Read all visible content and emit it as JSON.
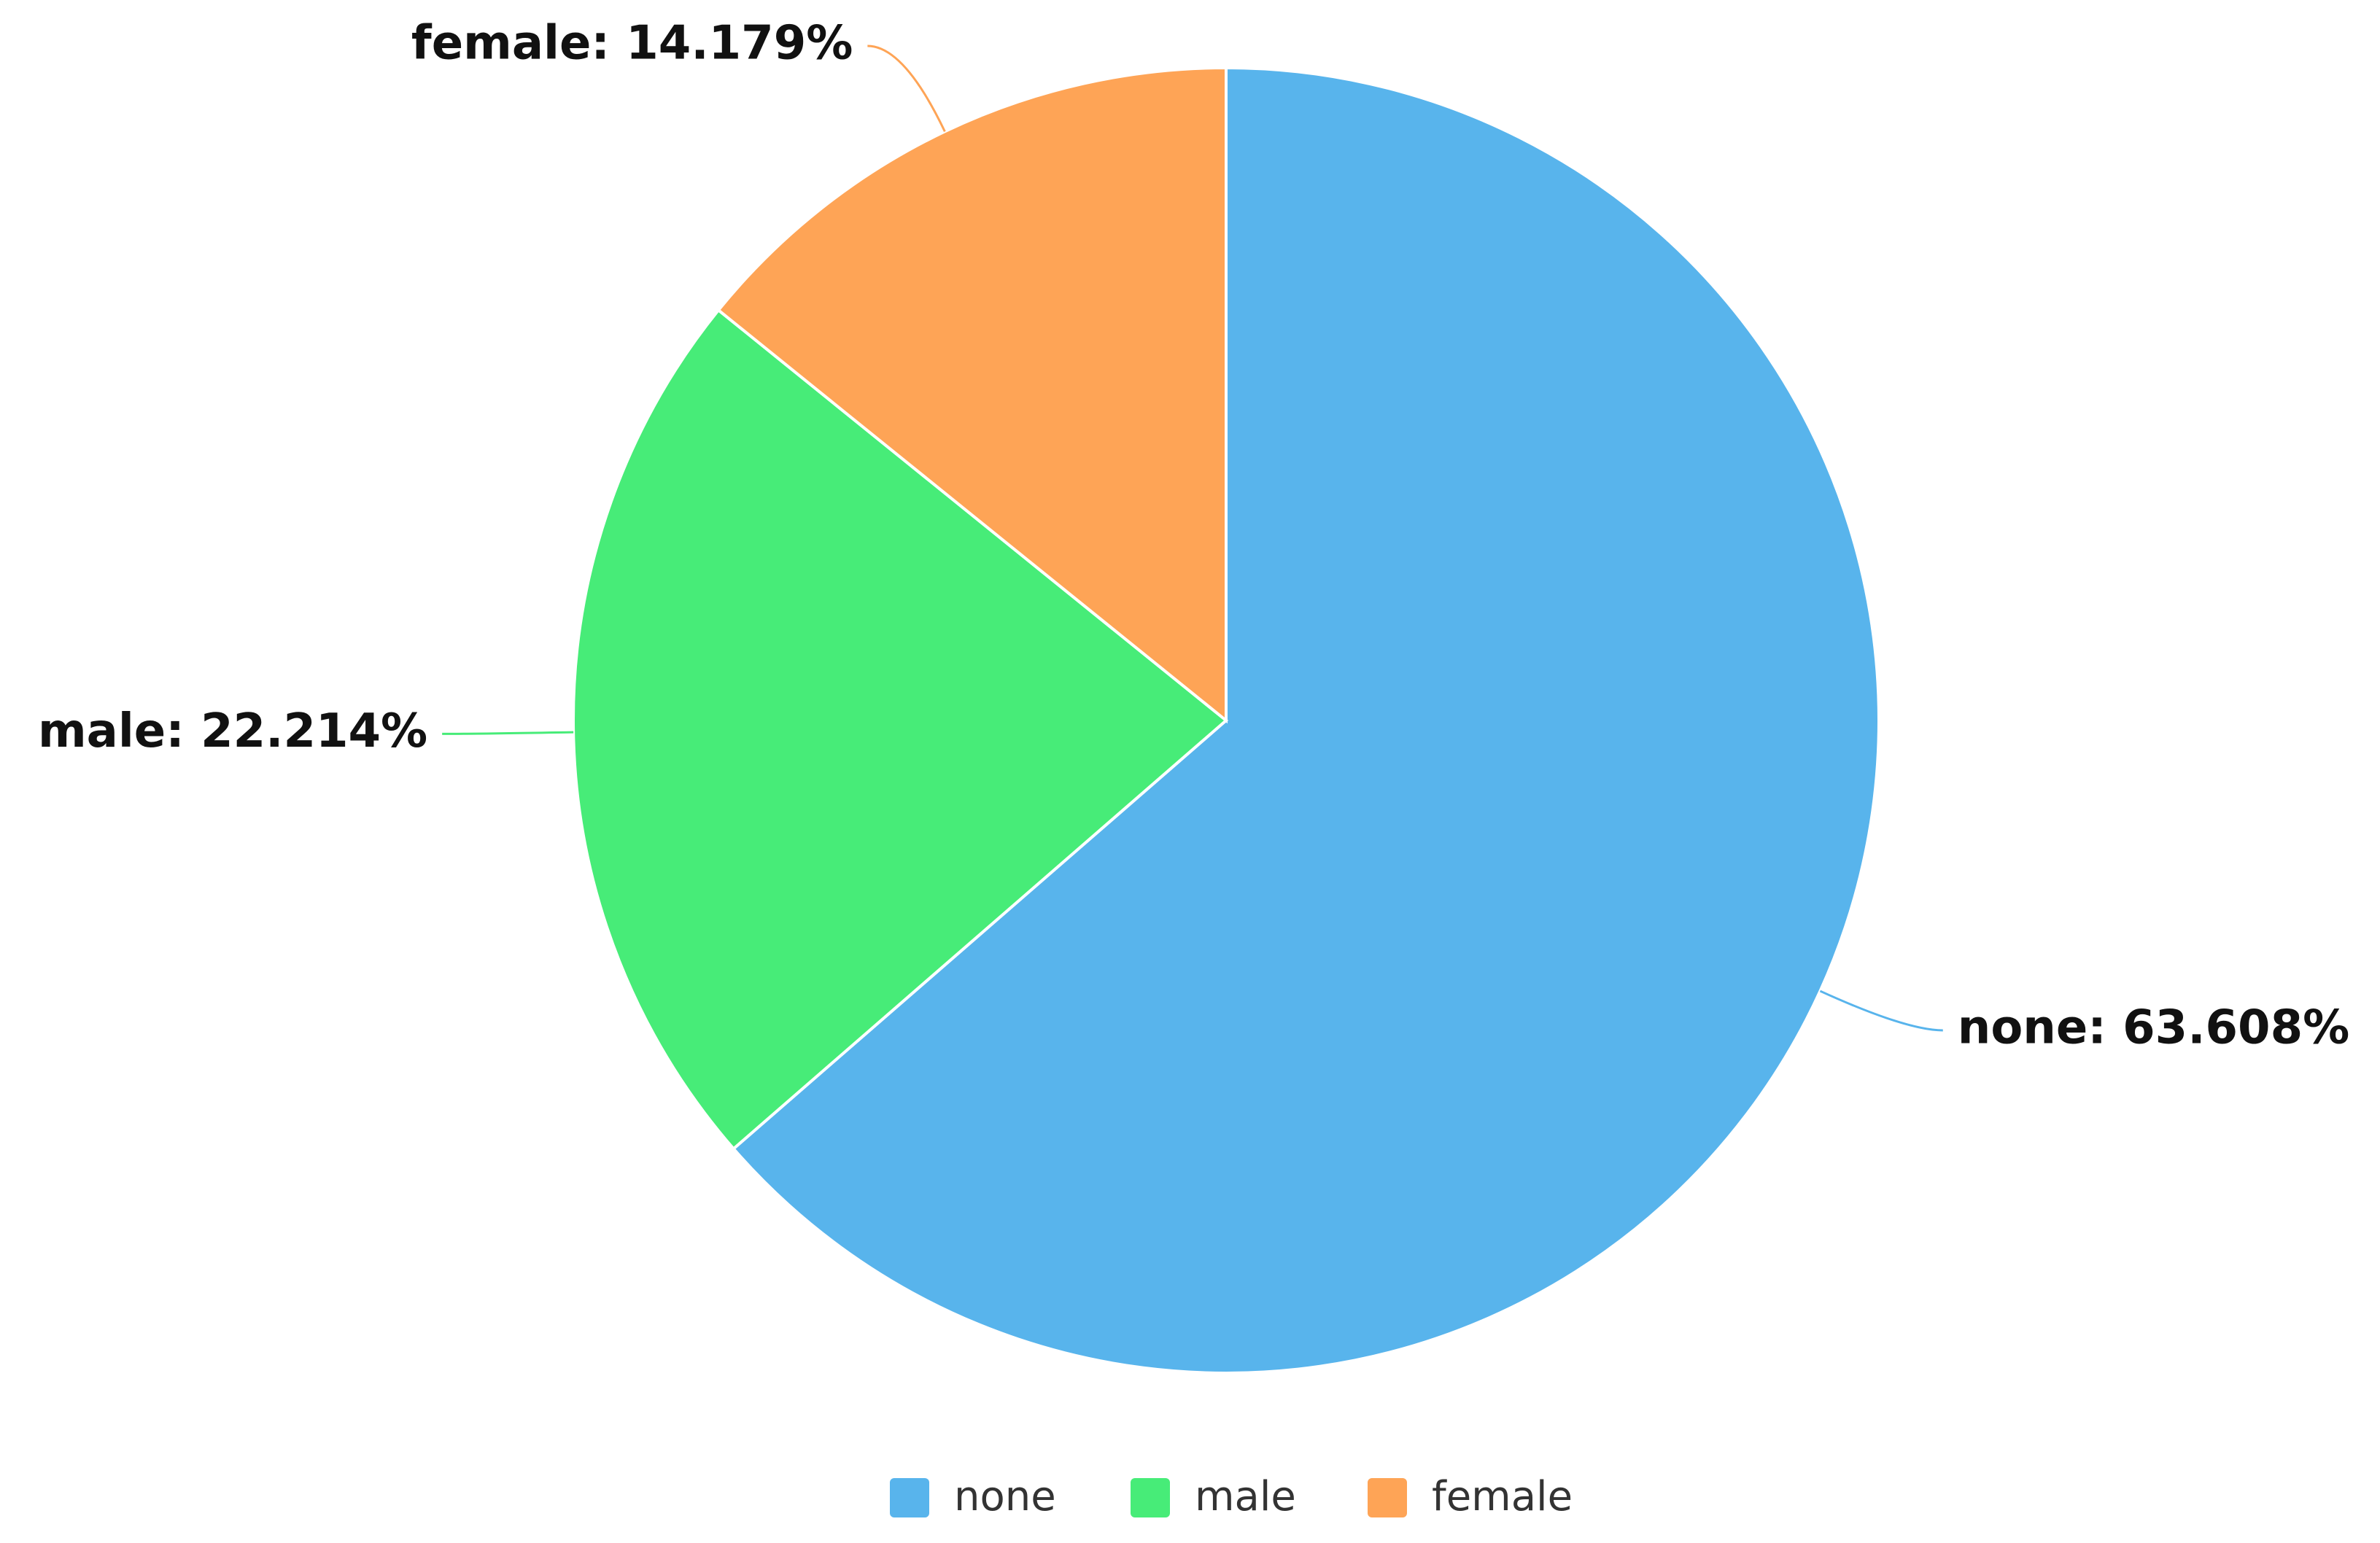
{
  "chart_data": {
    "type": "pie",
    "categories": [
      "none",
      "male",
      "female"
    ],
    "values": [
      63.608,
      22.214,
      14.179
    ],
    "value_labels": [
      "none: 63.608%",
      "male: 22.214%",
      "female: 14.179%"
    ],
    "colors": [
      "#58b4ec",
      "#47ec78",
      "#fea456"
    ],
    "legend": "bottom"
  }
}
